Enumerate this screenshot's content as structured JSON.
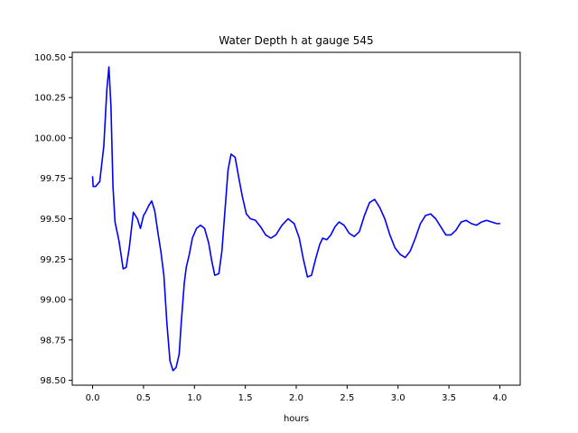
{
  "chart_data": {
    "type": "line",
    "title": "Water Depth h at gauge 545",
    "xlabel": "hours",
    "ylabel": "",
    "xlim": [
      -0.2,
      4.2
    ],
    "ylim": [
      98.47,
      100.53
    ],
    "x_ticks": [
      0.0,
      0.5,
      1.0,
      1.5,
      2.0,
      2.5,
      3.0,
      3.5,
      4.0
    ],
    "x_tick_labels": [
      "0.0",
      "0.5",
      "1.0",
      "1.5",
      "2.0",
      "2.5",
      "3.0",
      "3.5",
      "4.0"
    ],
    "y_ticks": [
      98.5,
      98.75,
      99.0,
      99.25,
      99.5,
      99.75,
      100.0,
      100.25,
      100.5
    ],
    "y_tick_labels": [
      "98.50",
      "98.75",
      "99.00",
      "99.25",
      "99.50",
      "99.75",
      "100.00",
      "100.25",
      "100.50"
    ],
    "grid": false,
    "series": [
      {
        "color": "#0000ff",
        "x": [
          0.0,
          0.005,
          0.03,
          0.07,
          0.11,
          0.14,
          0.16,
          0.18,
          0.2,
          0.22,
          0.24,
          0.26,
          0.3,
          0.33,
          0.36,
          0.4,
          0.44,
          0.47,
          0.5,
          0.52,
          0.55,
          0.58,
          0.61,
          0.64,
          0.67,
          0.7,
          0.73,
          0.76,
          0.79,
          0.82,
          0.85,
          0.87,
          0.9,
          0.92,
          0.95,
          0.98,
          1.02,
          1.06,
          1.1,
          1.14,
          1.17,
          1.2,
          1.24,
          1.27,
          1.3,
          1.33,
          1.36,
          1.4,
          1.44,
          1.47,
          1.51,
          1.55,
          1.6,
          1.65,
          1.7,
          1.75,
          1.8,
          1.86,
          1.92,
          1.98,
          2.03,
          2.07,
          2.11,
          2.15,
          2.19,
          2.23,
          2.26,
          2.3,
          2.34,
          2.38,
          2.42,
          2.47,
          2.52,
          2.57,
          2.62,
          2.67,
          2.72,
          2.77,
          2.82,
          2.87,
          2.92,
          2.97,
          3.02,
          3.07,
          3.12,
          3.17,
          3.22,
          3.27,
          3.32,
          3.37,
          3.42,
          3.47,
          3.52,
          3.57,
          3.62,
          3.67,
          3.72,
          3.77,
          3.82,
          3.87,
          3.92,
          3.97,
          4.0
        ],
        "y": [
          99.76,
          99.7,
          99.7,
          99.73,
          99.95,
          100.3,
          100.44,
          100.2,
          99.7,
          99.48,
          99.42,
          99.36,
          99.19,
          99.2,
          99.32,
          99.54,
          99.5,
          99.44,
          99.52,
          99.54,
          99.58,
          99.61,
          99.55,
          99.42,
          99.3,
          99.15,
          98.85,
          98.62,
          98.56,
          98.58,
          98.66,
          98.85,
          99.1,
          99.2,
          99.28,
          99.38,
          99.44,
          99.46,
          99.44,
          99.35,
          99.24,
          99.15,
          99.16,
          99.3,
          99.55,
          99.8,
          99.9,
          99.88,
          99.74,
          99.64,
          99.53,
          99.5,
          99.49,
          99.45,
          99.4,
          99.38,
          99.4,
          99.46,
          99.5,
          99.47,
          99.38,
          99.25,
          99.14,
          99.15,
          99.25,
          99.34,
          99.38,
          99.37,
          99.4,
          99.45,
          99.48,
          99.46,
          99.41,
          99.39,
          99.42,
          99.52,
          99.6,
          99.62,
          99.57,
          99.5,
          99.4,
          99.32,
          99.28,
          99.26,
          99.3,
          99.38,
          99.47,
          99.52,
          99.53,
          99.5,
          99.45,
          99.4,
          99.4,
          99.43,
          99.48,
          99.49,
          99.47,
          99.46,
          99.48,
          99.49,
          99.48,
          99.47,
          99.47
        ]
      }
    ]
  }
}
